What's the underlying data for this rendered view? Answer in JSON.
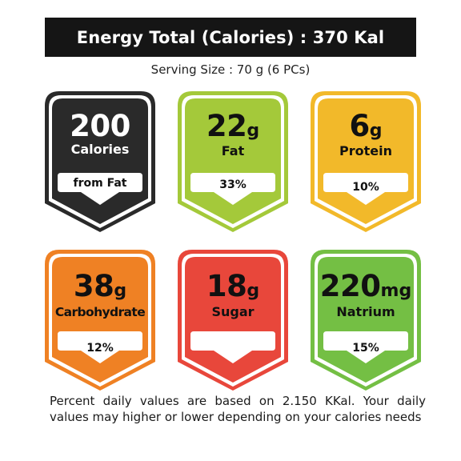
{
  "title": "Energy Total (Calories) : 370 Kal",
  "serving": "Serving Size : 70 g (6 PCs)",
  "badges": [
    {
      "value": "200",
      "unit": "",
      "label": "Calories",
      "pct": "from Fat",
      "fill": "#2a2a2a",
      "text_color": "#ffffff"
    },
    {
      "value": "22",
      "unit": "g",
      "label": "Fat",
      "pct": "33%",
      "fill": "#a4c93a",
      "text_color": "#111111"
    },
    {
      "value": "6",
      "unit": "g",
      "label": "Protein",
      "pct": "10%",
      "fill": "#f2b92a",
      "text_color": "#111111"
    },
    {
      "value": "38",
      "unit": "g",
      "label": "Carbohydrate",
      "pct": "12%",
      "fill": "#ef8124",
      "text_color": "#111111"
    },
    {
      "value": "18",
      "unit": "g",
      "label": "Sugar",
      "pct": "",
      "fill": "#e8473b",
      "text_color": "#111111"
    },
    {
      "value": "220",
      "unit": "mg",
      "label": "Natrium",
      "pct": "15%",
      "fill": "#74bf44",
      "text_color": "#111111"
    }
  ],
  "footnote": "Percent daily values are based on 2.150 KKal. Your daily values may higher or lower depending on your calories needs"
}
